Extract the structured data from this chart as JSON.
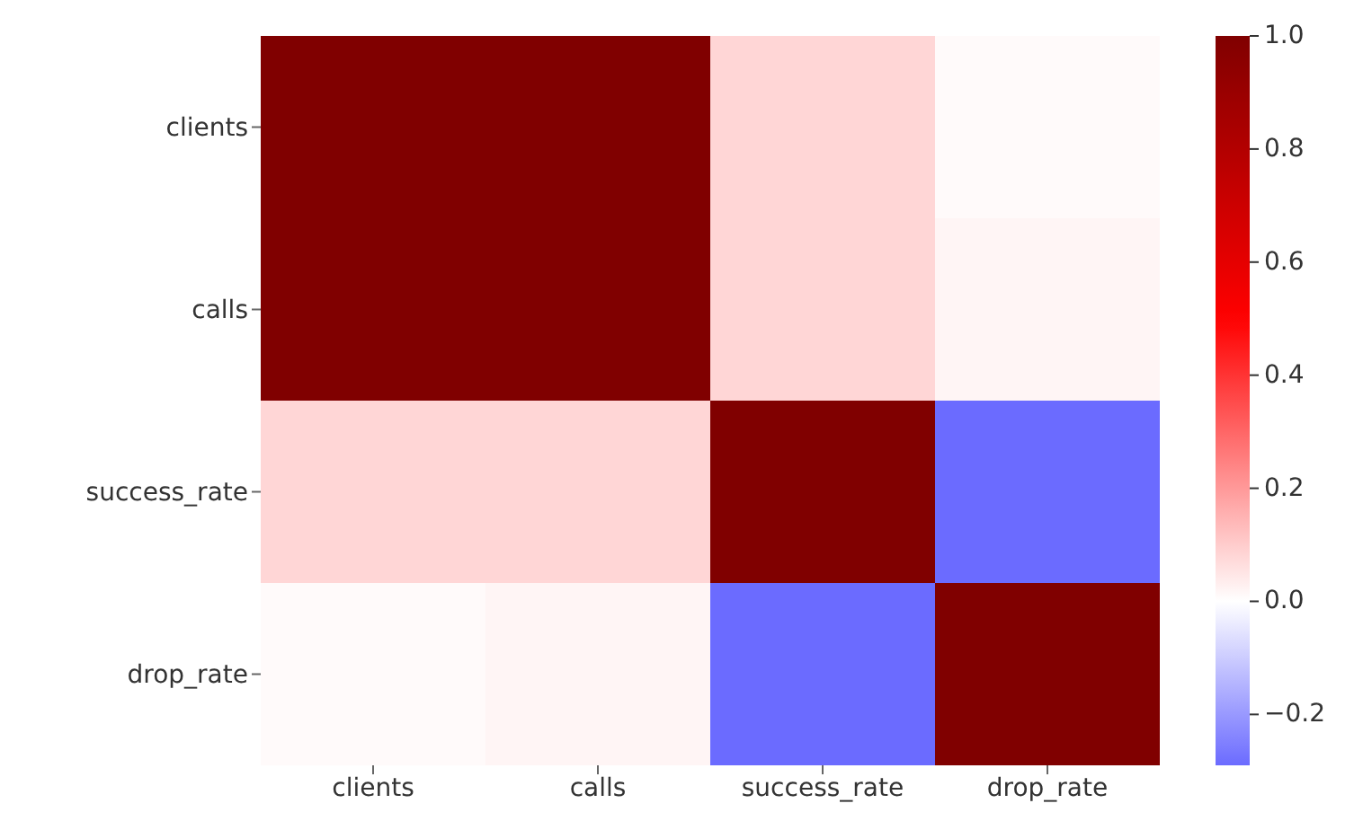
{
  "chart_data": {
    "type": "heatmap",
    "categories": [
      "clients",
      "calls",
      "success_rate",
      "drop_rate"
    ],
    "y_categories": [
      "clients",
      "calls",
      "success_rate",
      "drop_rate"
    ],
    "cells": [
      [
        1,
        1,
        0.08,
        0.01
      ],
      [
        1,
        1,
        0.08,
        0.02
      ],
      [
        0.08,
        0.08,
        1,
        -0.29
      ],
      [
        0.01,
        0.02,
        -0.29,
        1
      ]
    ],
    "clim": [
      -0.29,
      1
    ],
    "cticks": [
      {
        "value": -0.2,
        "label": "−0.2"
      },
      {
        "value": 0,
        "label": "0.0"
      },
      {
        "value": 0.2,
        "label": "0.2"
      },
      {
        "value": 0.4,
        "label": "0.4"
      },
      {
        "value": 0.6,
        "label": "0.6"
      },
      {
        "value": 0.8,
        "label": "0.8"
      },
      {
        "value": 1,
        "label": "1.0"
      }
    ]
  }
}
